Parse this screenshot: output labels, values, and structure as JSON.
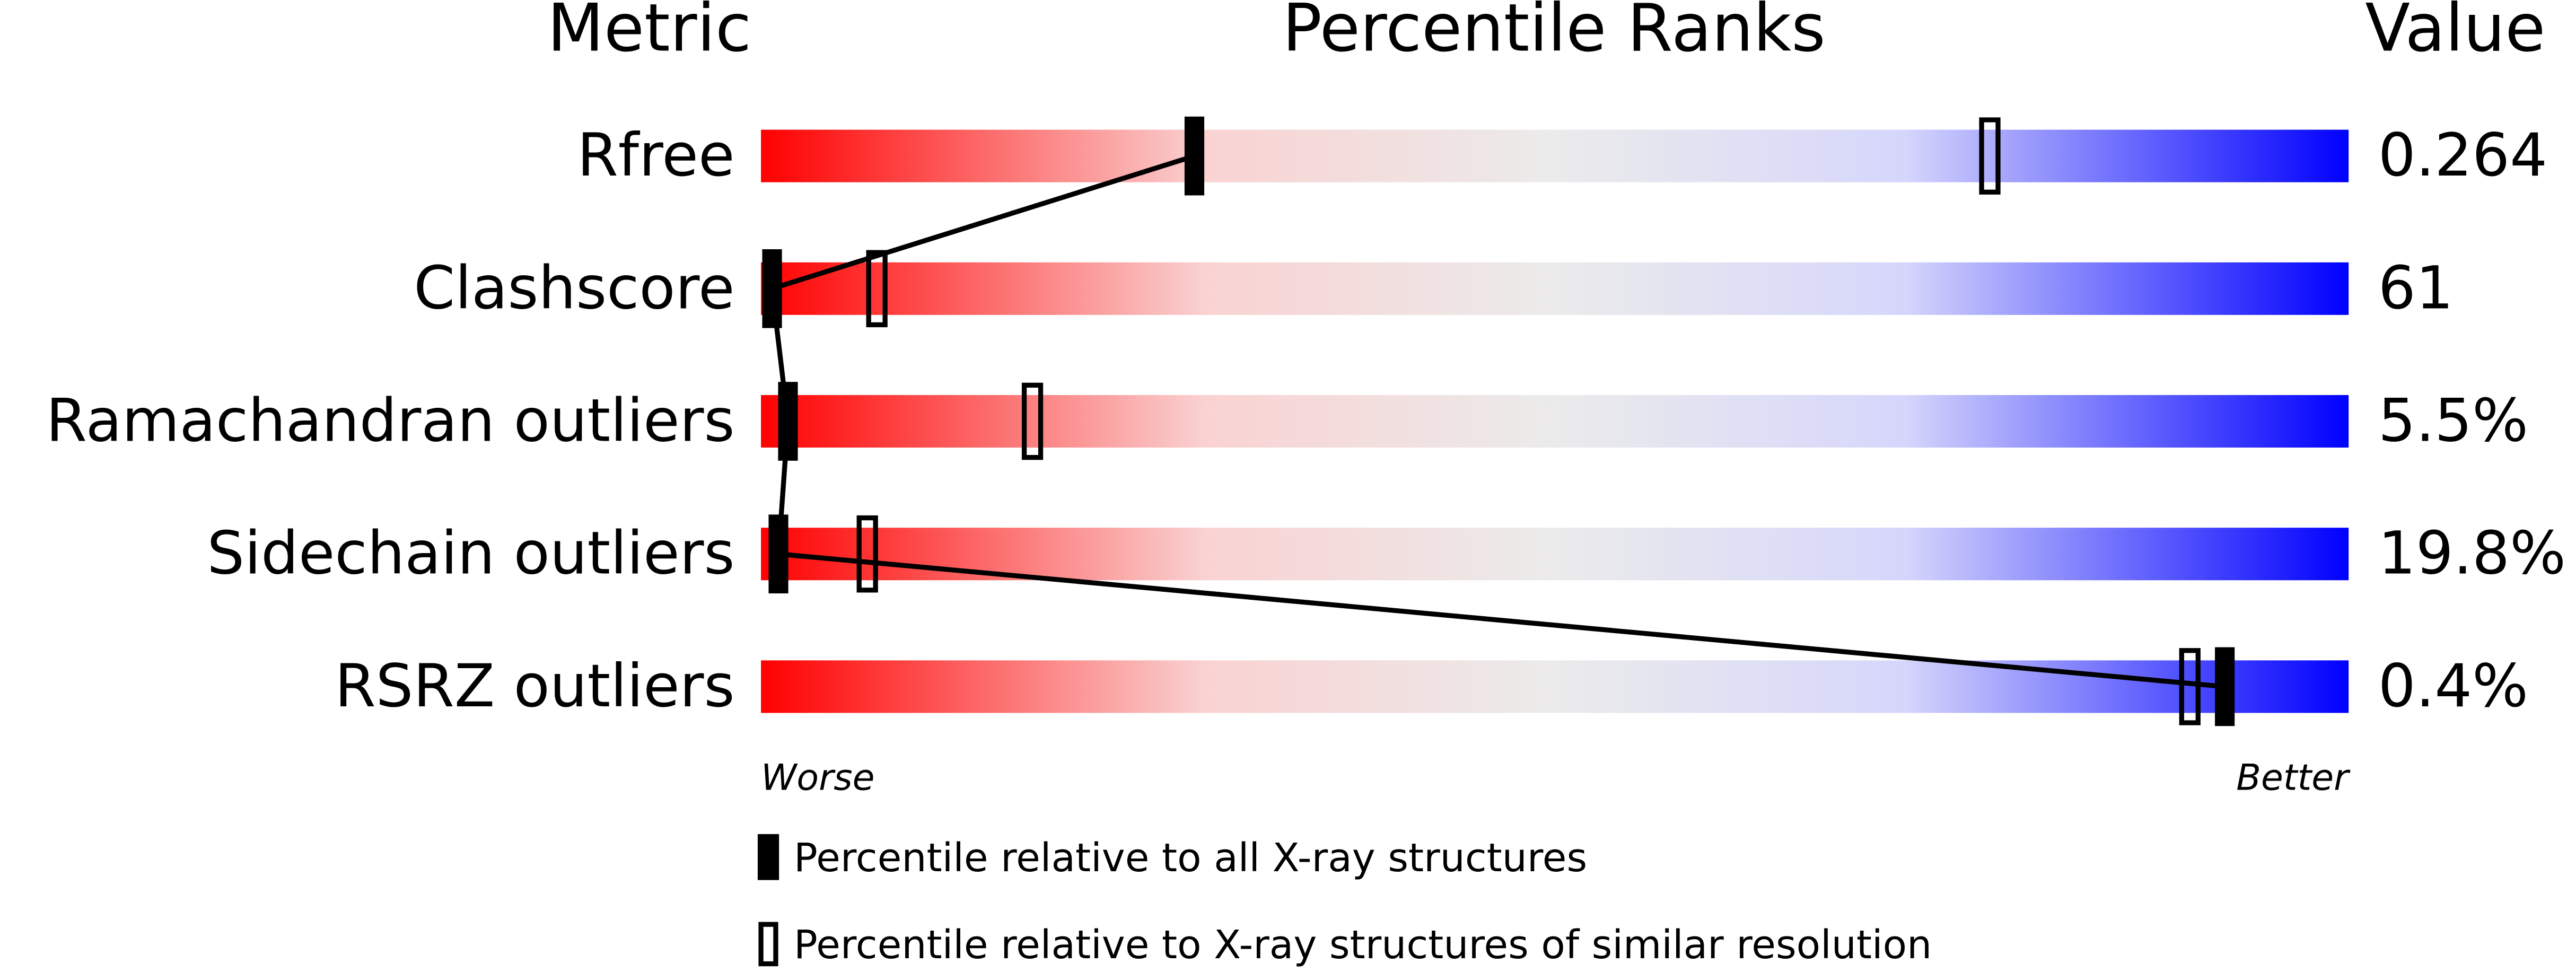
{
  "chart_data": {
    "type": "percentile",
    "column_titles": {
      "metric": "Metric",
      "ranks": "Percentile Ranks",
      "value": "Value"
    },
    "categories": [
      "Rfree",
      "Clashscore",
      "Ramachandran outliers",
      "Sidechain outliers",
      "RSRZ outliers"
    ],
    "metric_values": [
      "0.264",
      "61",
      "5.5%",
      "19.8%",
      "0.4%"
    ],
    "xlim": [
      0,
      100
    ],
    "axis_labels": {
      "worse": "Worse",
      "better": "Better"
    },
    "colors": {
      "worse": "#ff0000",
      "middle": "#ebebeb",
      "better": "#0000ff"
    },
    "series": [
      {
        "name": "Percentile relative to all X-ray structures",
        "marker": "filled",
        "color": "#000000",
        "values": [
          27.3,
          0.7,
          1.7,
          1.1,
          92.2
        ]
      },
      {
        "name": "Percentile relative to X-ray structures of similar resolution",
        "marker": "open",
        "color": "#000000",
        "values": [
          77.4,
          7.3,
          17.1,
          6.7,
          90.0
        ]
      }
    ]
  }
}
